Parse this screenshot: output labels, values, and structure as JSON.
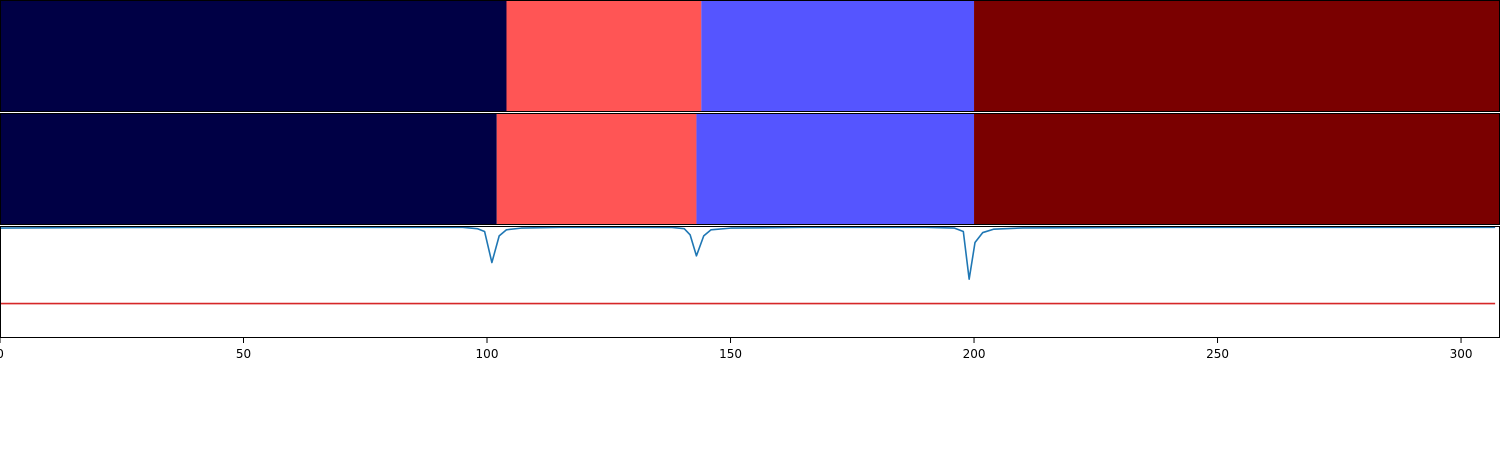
{
  "chart_data": [
    {
      "type": "heatmap",
      "xlim": [
        0,
        308
      ],
      "segments": [
        {
          "start": 0,
          "end": 104,
          "color": "#000045"
        },
        {
          "start": 104,
          "end": 144,
          "color": "#ff5555"
        },
        {
          "start": 144,
          "end": 200,
          "color": "#5555ff"
        },
        {
          "start": 200,
          "end": 308,
          "color": "#7a0000"
        }
      ]
    },
    {
      "type": "heatmap",
      "xlim": [
        0,
        308
      ],
      "segments": [
        {
          "start": 0,
          "end": 102,
          "color": "#000045"
        },
        {
          "start": 102,
          "end": 143,
          "color": "#ff5555"
        },
        {
          "start": 143,
          "end": 200,
          "color": "#5555ff"
        },
        {
          "start": 200,
          "end": 308,
          "color": "#7a0000"
        }
      ]
    },
    {
      "type": "line",
      "xlim": [
        0,
        308
      ],
      "ylim": [
        0,
        1
      ],
      "x_ticks": [
        0,
        50,
        100,
        150,
        200,
        250,
        300
      ],
      "x_tick_labels": [
        "0",
        "50",
        "100",
        "150",
        "200",
        "250",
        "300"
      ],
      "series": [
        {
          "color": "#1f77b4",
          "points": [
            [
              0,
              0.99
            ],
            [
              20,
              0.995
            ],
            [
              60,
              0.998
            ],
            [
              95,
              0.997
            ],
            [
              98,
              0.985
            ],
            [
              99.5,
              0.96
            ],
            [
              101,
              0.68
            ],
            [
              102.5,
              0.92
            ],
            [
              104,
              0.975
            ],
            [
              107,
              0.99
            ],
            [
              115,
              0.997
            ],
            [
              130,
              0.997
            ],
            [
              138,
              0.996
            ],
            [
              140.5,
              0.985
            ],
            [
              141.7,
              0.93
            ],
            [
              143,
              0.74
            ],
            [
              144.5,
              0.92
            ],
            [
              146,
              0.975
            ],
            [
              150,
              0.99
            ],
            [
              165,
              0.997
            ],
            [
              190,
              0.997
            ],
            [
              196,
              0.99
            ],
            [
              197.8,
              0.96
            ],
            [
              199,
              0.53
            ],
            [
              200.2,
              0.86
            ],
            [
              201.8,
              0.95
            ],
            [
              204,
              0.98
            ],
            [
              210,
              0.992
            ],
            [
              240,
              0.997
            ],
            [
              307,
              0.997
            ]
          ]
        },
        {
          "color": "#d62728",
          "points": [
            [
              0,
              0.31
            ],
            [
              307,
              0.31
            ]
          ]
        }
      ]
    }
  ]
}
